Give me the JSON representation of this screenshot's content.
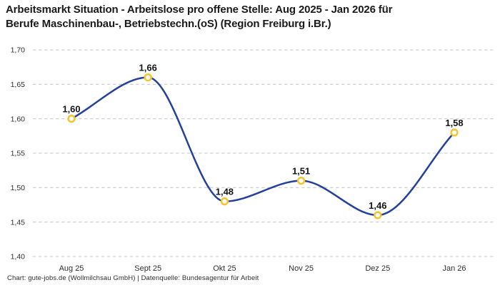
{
  "title": "Arbeitsmarkt Situation - Arbeitslose pro offene Stelle: Aug 2025 - Jan 2026 für\nBerufe Maschinenbau-, Betriebstechn.(oS) (Region Freiburg i.Br.)",
  "footer": "Chart: gute-jobs.de (Wollmilchsau GmbH) | Datenquelle: Bundesagentur für Arbeit",
  "chart_data": {
    "type": "line",
    "categories": [
      "Aug 25",
      "Sept 25",
      "Okt 25",
      "Nov 25",
      "Dez 25",
      "Jan 26"
    ],
    "values": [
      1.6,
      1.66,
      1.48,
      1.51,
      1.46,
      1.58
    ],
    "value_labels": [
      "1,60",
      "1,66",
      "1,48",
      "1,51",
      "1,46",
      "1,58"
    ],
    "title": "Arbeitsmarkt Situation - Arbeitslose pro offene Stelle: Aug 2025 - Jan 2026 für Berufe Maschinenbau-, Betriebstechn.(oS) (Region Freiburg i.Br.)",
    "xlabel": "",
    "ylabel": "",
    "ylim": [
      1.4,
      1.7
    ],
    "y_tick_step": 0.05,
    "y_tick_labels": [
      "1,70",
      "1,65",
      "1,60",
      "1,55",
      "1,50",
      "1,45",
      "1,40"
    ],
    "grid": "horizontal-dashed",
    "legend": "none",
    "curve": "smooth-monotone",
    "colors": {
      "line": "#24419b",
      "marker_stroke": "#f5c32b",
      "marker_fill": "#ffffff",
      "grid": "#c9c9c9",
      "axis_text": "#2f2f2f",
      "data_label_text": "#141414"
    }
  }
}
